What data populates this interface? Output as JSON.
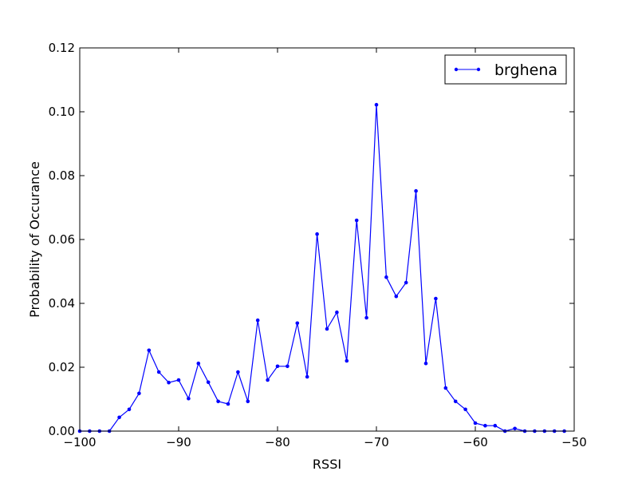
{
  "chart_data": {
    "type": "line",
    "xlabel": "RSSI",
    "ylabel": "Probability of Occurance",
    "xlim": [
      -100,
      -50
    ],
    "ylim": [
      0,
      0.12
    ],
    "xticks": [
      -100,
      -90,
      -80,
      -70,
      -60,
      -50
    ],
    "xtick_labels": [
      "−100",
      "−90",
      "−80",
      "−70",
      "−60",
      "−50"
    ],
    "yticks": [
      0,
      0.02,
      0.04,
      0.06,
      0.08,
      0.1,
      0.12
    ],
    "ytick_labels": [
      "0.00",
      "0.02",
      "0.04",
      "0.06",
      "0.08",
      "0.10",
      "0.12"
    ],
    "grid": false,
    "legend_position": "top-right",
    "series": [
      {
        "name": "brghena",
        "color": "#0000ff",
        "marker": "dot",
        "x": [
          -100,
          -99,
          -98,
          -97,
          -96,
          -95,
          -94,
          -93,
          -92,
          -91,
          -90,
          -89,
          -88,
          -87,
          -86,
          -85,
          -84,
          -83,
          -82,
          -81,
          -80,
          -79,
          -78,
          -77,
          -76,
          -75,
          -74,
          -73,
          -72,
          -71,
          -70,
          -69,
          -68,
          -67,
          -66,
          -65,
          -64,
          -63,
          -62,
          -61,
          -60,
          -59,
          -58,
          -57,
          -56,
          -55,
          -54,
          -53,
          -52,
          -51
        ],
        "y": [
          0.0,
          0.0,
          0.0,
          0.0,
          0.0043,
          0.0068,
          0.0118,
          0.0253,
          0.0185,
          0.0152,
          0.016,
          0.0102,
          0.0212,
          0.0153,
          0.0093,
          0.0085,
          0.0185,
          0.0093,
          0.0347,
          0.016,
          0.0203,
          0.0203,
          0.0338,
          0.017,
          0.0617,
          0.032,
          0.0372,
          0.022,
          0.066,
          0.0355,
          0.1022,
          0.0482,
          0.0422,
          0.0465,
          0.0752,
          0.0212,
          0.0415,
          0.0135,
          0.0093,
          0.0068,
          0.0025,
          0.0017,
          0.0017,
          0.0,
          0.0008,
          0.0,
          0.0,
          0.0,
          0.0,
          0.0
        ]
      }
    ]
  }
}
